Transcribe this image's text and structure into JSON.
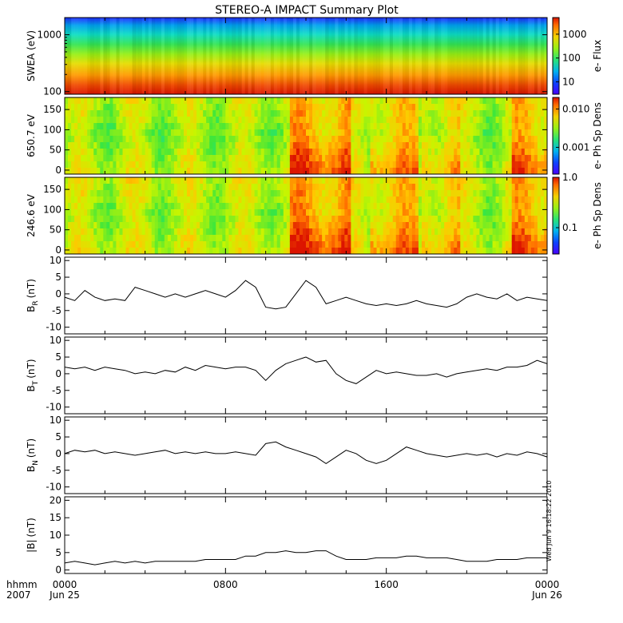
{
  "title": "STEREO-A IMPACT Summary Plot",
  "timestamp": "Wed Jun 9 16:18:22 2010",
  "time_axis": {
    "row1_label": "hhmm",
    "row2_label": "2007",
    "ticks": [
      {
        "time": "0000",
        "date": "Jun 25",
        "hour": 0
      },
      {
        "time": "0800",
        "date": "",
        "hour": 8
      },
      {
        "time": "1600",
        "date": "",
        "hour": 16
      },
      {
        "time": "0000",
        "date": "Jun 26",
        "hour": 24
      }
    ],
    "range_hours": [
      0,
      24
    ]
  },
  "colors": {
    "line": "#000000",
    "axis": "#000000"
  },
  "chart_data": [
    {
      "type": "heatmap",
      "ylabel": "SWEA (eV)",
      "yscale": "log",
      "ylim": [
        90,
        2000
      ],
      "yticks": [
        {
          "v": 100,
          "label": "100"
        },
        {
          "v": 1000,
          "label": "1000"
        }
      ],
      "colorbar": {
        "label": "e- Flux",
        "scale": "log",
        "range": [
          3,
          5000
        ],
        "ticks": [
          {
            "v": 10,
            "label": "10"
          },
          {
            "v": 100,
            "label": "100"
          },
          {
            "v": 1000,
            "label": "1000"
          }
        ]
      },
      "colormap": "rainbow"
    },
    {
      "type": "heatmap",
      "ylabel": "650.7 eV",
      "ylim": [
        -10,
        180
      ],
      "yticks": [
        {
          "v": 0,
          "label": "0"
        },
        {
          "v": 50,
          "label": "50"
        },
        {
          "v": 100,
          "label": "100"
        },
        {
          "v": 150,
          "label": "150"
        }
      ],
      "colorbar": {
        "label": "e- Ph Sp Dens",
        "scale": "log",
        "range": [
          0.0002,
          0.02
        ],
        "ticks": [
          {
            "v": 0.001,
            "label": "0.001"
          },
          {
            "v": 0.01,
            "label": "0.010"
          }
        ]
      },
      "colormap": "rainbow"
    },
    {
      "type": "heatmap",
      "ylabel": "246.6 eV",
      "ylim": [
        -10,
        180
      ],
      "yticks": [
        {
          "v": 0,
          "label": "0"
        },
        {
          "v": 50,
          "label": "50"
        },
        {
          "v": 100,
          "label": "100"
        },
        {
          "v": 150,
          "label": "150"
        }
      ],
      "colorbar": {
        "label": "e- Ph Sp Dens",
        "scale": "log",
        "range": [
          0.03,
          1.0
        ],
        "ticks": [
          {
            "v": 0.1,
            "label": "0.1"
          },
          {
            "v": 1.0,
            "label": "1.0"
          }
        ]
      },
      "colormap": "rainbow"
    },
    {
      "type": "line",
      "ylabel_main": "B",
      "ylabel_sub": "R",
      "ylabel_unit": "(nT)",
      "ylim": [
        -12,
        11
      ],
      "yticks": [
        {
          "v": -10,
          "label": "-10"
        },
        {
          "v": -5,
          "label": "-5"
        },
        {
          "v": 0,
          "label": "0"
        },
        {
          "v": 5,
          "label": "5"
        },
        {
          "v": 10,
          "label": "10"
        }
      ],
      "x": [
        0,
        0.5,
        1,
        1.5,
        2,
        2.5,
        3,
        3.5,
        4,
        4.5,
        5,
        5.5,
        6,
        6.5,
        7,
        7.5,
        8,
        8.5,
        9,
        9.5,
        10,
        10.5,
        11,
        11.5,
        12,
        12.5,
        13,
        13.5,
        14,
        14.5,
        15,
        15.5,
        16,
        16.5,
        17,
        17.5,
        18,
        18.5,
        19,
        19.5,
        20,
        20.5,
        21,
        21.5,
        22,
        22.5,
        23,
        23.5,
        24
      ],
      "values": [
        -1,
        -2,
        1,
        -1,
        -2,
        -1.5,
        -2,
        2,
        1,
        0,
        -1,
        0,
        -1,
        0,
        1,
        0,
        -1,
        1,
        4,
        2,
        -4,
        -4.5,
        -4,
        0,
        4,
        2,
        -3,
        -2,
        -1,
        -2,
        -3,
        -3.5,
        -3,
        -3.5,
        -3,
        -2,
        -3,
        -3.5,
        -4,
        -3,
        -1,
        0,
        -1,
        -1.5,
        0,
        -2,
        -1,
        -1.5,
        -2
      ]
    },
    {
      "type": "line",
      "ylabel_main": "B",
      "ylabel_sub": "T",
      "ylabel_unit": "(nT)",
      "ylim": [
        -12,
        11
      ],
      "yticks": [
        {
          "v": -10,
          "label": "-10"
        },
        {
          "v": -5,
          "label": "-5"
        },
        {
          "v": 0,
          "label": "0"
        },
        {
          "v": 5,
          "label": "5"
        },
        {
          "v": 10,
          "label": "10"
        }
      ],
      "x": [
        0,
        0.5,
        1,
        1.5,
        2,
        2.5,
        3,
        3.5,
        4,
        4.5,
        5,
        5.5,
        6,
        6.5,
        7,
        7.5,
        8,
        8.5,
        9,
        9.5,
        10,
        10.5,
        11,
        11.5,
        12,
        12.5,
        13,
        13.5,
        14,
        14.5,
        15,
        15.5,
        16,
        16.5,
        17,
        17.5,
        18,
        18.5,
        19,
        19.5,
        20,
        20.5,
        21,
        21.5,
        22,
        22.5,
        23,
        23.5,
        24
      ],
      "values": [
        2,
        1.5,
        2,
        1,
        2,
        1.5,
        1,
        0,
        0.5,
        0,
        1,
        0.5,
        2,
        1,
        2.5,
        2,
        1.5,
        2,
        2,
        1,
        -2,
        1,
        3,
        4,
        5,
        3.5,
        4,
        0,
        -2,
        -3,
        -1,
        1,
        0,
        0.5,
        0,
        -0.5,
        -0.5,
        0,
        -1,
        0,
        0.5,
        1,
        1.5,
        1,
        2,
        2,
        2.5,
        4,
        3
      ]
    },
    {
      "type": "line",
      "ylabel_main": "B",
      "ylabel_sub": "N",
      "ylabel_unit": "(nT)",
      "ylim": [
        -12,
        11
      ],
      "yticks": [
        {
          "v": -10,
          "label": "-10"
        },
        {
          "v": -5,
          "label": "-5"
        },
        {
          "v": 0,
          "label": "0"
        },
        {
          "v": 5,
          "label": "5"
        },
        {
          "v": 10,
          "label": "10"
        }
      ],
      "x": [
        0,
        0.5,
        1,
        1.5,
        2,
        2.5,
        3,
        3.5,
        4,
        4.5,
        5,
        5.5,
        6,
        6.5,
        7,
        7.5,
        8,
        8.5,
        9,
        9.5,
        10,
        10.5,
        11,
        11.5,
        12,
        12.5,
        13,
        13.5,
        14,
        14.5,
        15,
        15.5,
        16,
        16.5,
        17,
        17.5,
        18,
        18.5,
        19,
        19.5,
        20,
        20.5,
        21,
        21.5,
        22,
        22.5,
        23,
        23.5,
        24
      ],
      "values": [
        0,
        1,
        0.5,
        1,
        0,
        0.5,
        0,
        -0.5,
        0,
        0.5,
        1,
        0,
        0.5,
        0,
        0.5,
        0,
        0,
        0.5,
        0,
        -0.5,
        3,
        3.5,
        2,
        1,
        0,
        -1,
        -3,
        -1,
        1,
        0,
        -2,
        -3,
        -2,
        0,
        2,
        1,
        0,
        -0.5,
        -1,
        -0.5,
        0,
        -0.5,
        0,
        -1,
        0,
        -0.5,
        0.5,
        0,
        -1
      ]
    },
    {
      "type": "line",
      "ylabel_main": "|B|",
      "ylabel_sub": "",
      "ylabel_unit": "(nT)",
      "ylim": [
        -1,
        21
      ],
      "yticks": [
        {
          "v": 0,
          "label": "0"
        },
        {
          "v": 5,
          "label": "5"
        },
        {
          "v": 10,
          "label": "10"
        },
        {
          "v": 15,
          "label": "15"
        },
        {
          "v": 20,
          "label": "20"
        }
      ],
      "x": [
        0,
        0.5,
        1,
        1.5,
        2,
        2.5,
        3,
        3.5,
        4,
        4.5,
        5,
        5.5,
        6,
        6.5,
        7,
        7.5,
        8,
        8.5,
        9,
        9.5,
        10,
        10.5,
        11,
        11.5,
        12,
        12.5,
        13,
        13.5,
        14,
        14.5,
        15,
        15.5,
        16,
        16.5,
        17,
        17.5,
        18,
        18.5,
        19,
        19.5,
        20,
        20.5,
        21,
        21.5,
        22,
        22.5,
        23,
        23.5,
        24
      ],
      "values": [
        2,
        2.5,
        2,
        1.5,
        2,
        2.5,
        2,
        2.5,
        2,
        2.5,
        2.5,
        2.5,
        2.5,
        2.5,
        3,
        3,
        3,
        3,
        4,
        4,
        5,
        5,
        5.5,
        5,
        5,
        5.5,
        5.5,
        4,
        3,
        3,
        3,
        3.5,
        3.5,
        3.5,
        4,
        4,
        3.5,
        3.5,
        3.5,
        3,
        2.5,
        2.5,
        2.5,
        3,
        3,
        3,
        3.5,
        3.5,
        3.5
      ]
    }
  ]
}
